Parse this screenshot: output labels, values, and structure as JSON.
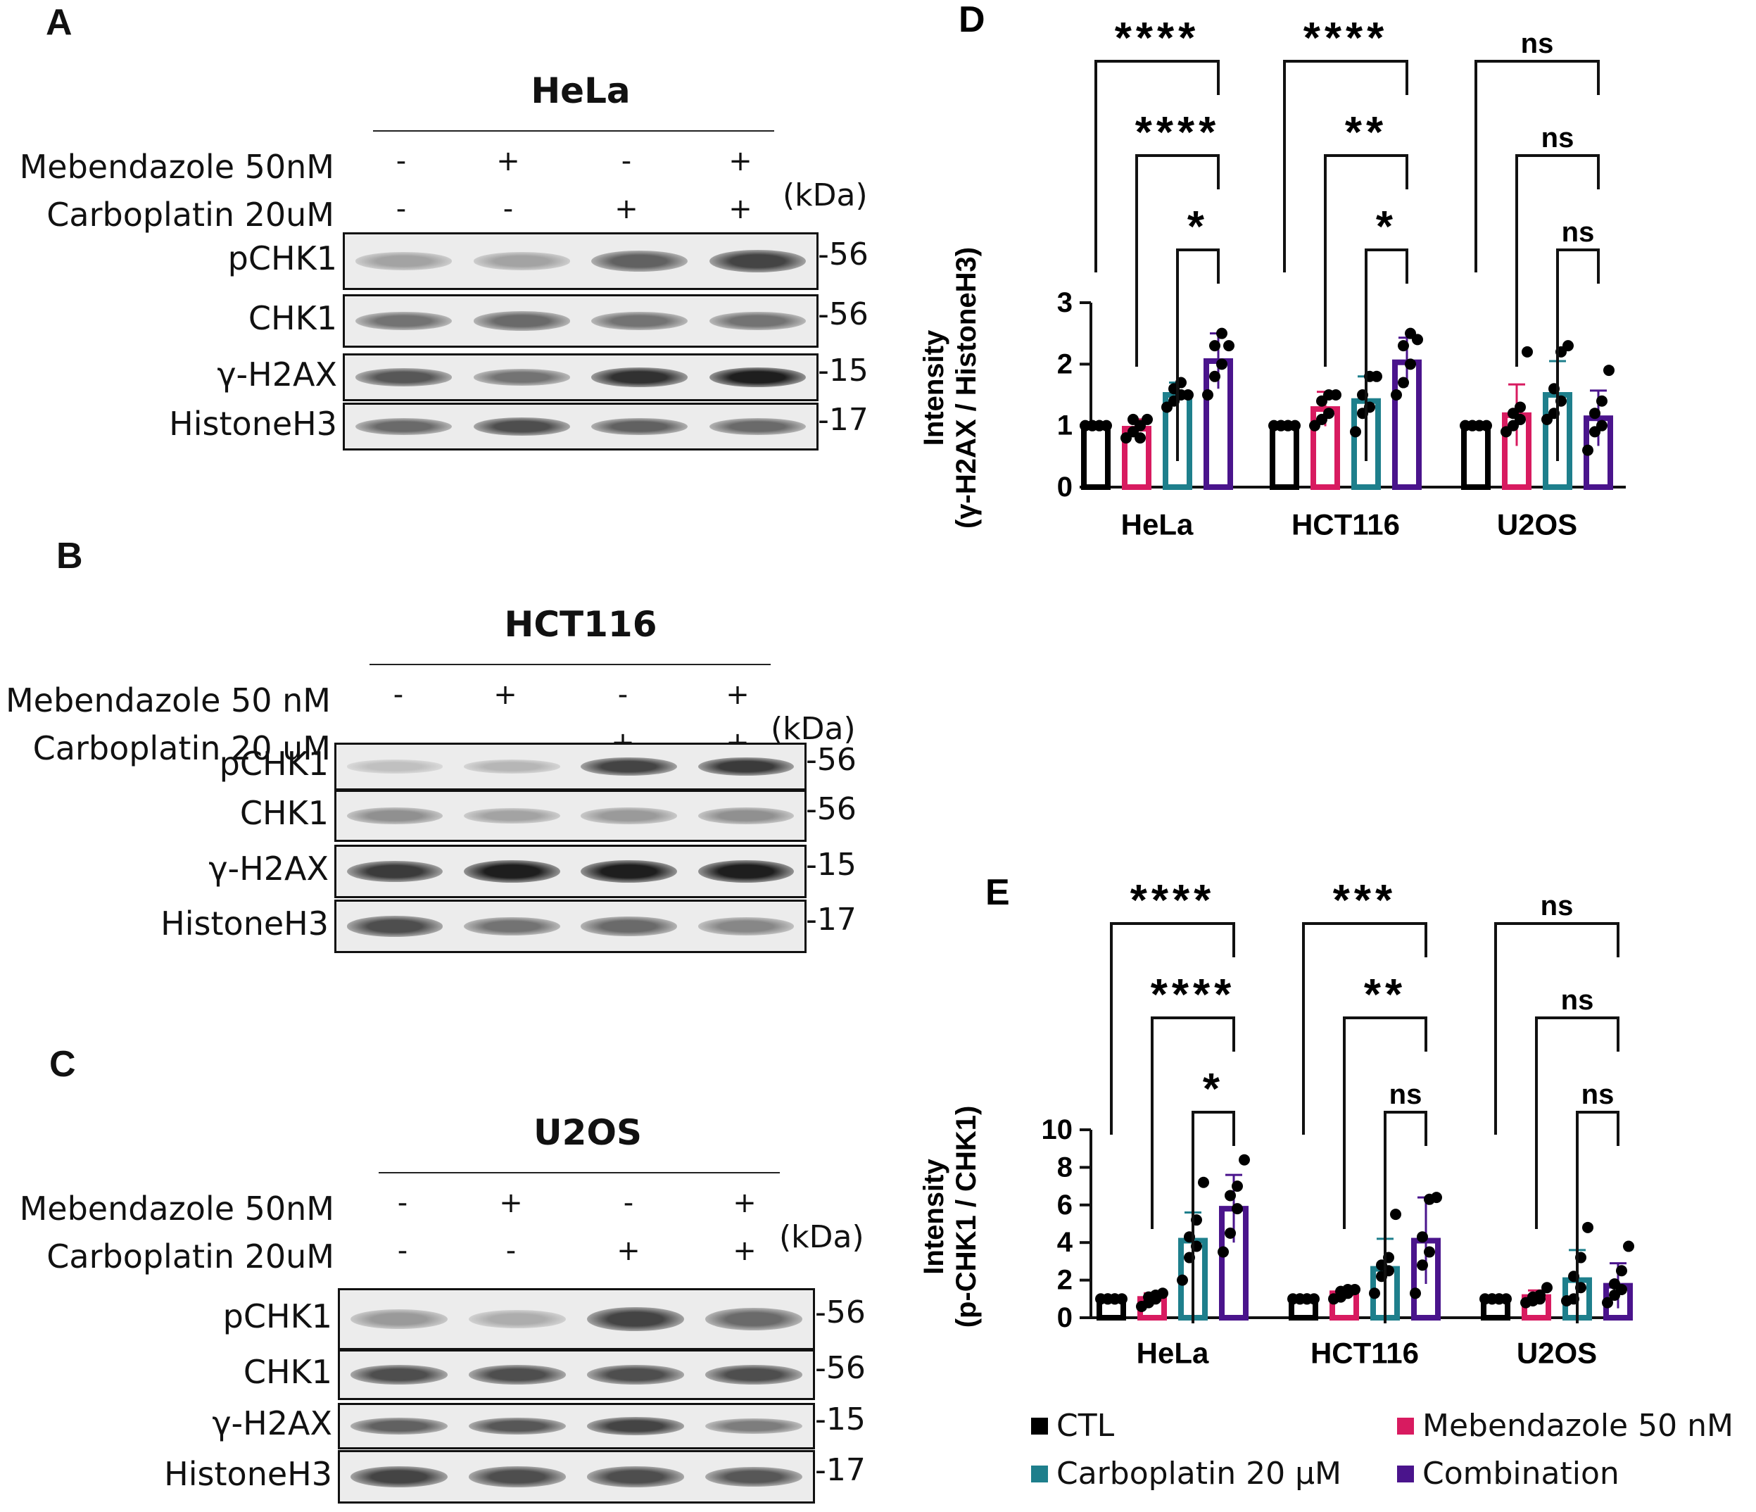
{
  "blots": [
    {
      "panel_label": "A",
      "title": "HeLa",
      "treatments": [
        {
          "label": "Mebendazole 50nM",
          "signs": [
            "-",
            "+",
            "-",
            "+"
          ]
        },
        {
          "label": "Carboplatin 20uM",
          "signs": [
            "-",
            "-",
            "+",
            "+"
          ]
        }
      ],
      "kda": "(kDa)",
      "rows": [
        {
          "protein": "pCHK1",
          "mw": "-56",
          "intensity": [
            0.3,
            0.3,
            0.65,
            0.8
          ]
        },
        {
          "protein": "CHK1",
          "mw": "-56",
          "intensity": [
            0.55,
            0.6,
            0.55,
            0.55
          ]
        },
        {
          "protein": "γ-H2AX",
          "mw": "-15",
          "intensity": [
            0.7,
            0.55,
            0.9,
            1.0
          ]
        },
        {
          "protein": "HistoneH3",
          "mw": "-17",
          "intensity": [
            0.6,
            0.75,
            0.65,
            0.6
          ]
        }
      ]
    },
    {
      "panel_label": "B",
      "title": "HCT116",
      "treatments": [
        {
          "label": "Mebendazole 50 nM",
          "signs": [
            "-",
            "+",
            "-",
            "+"
          ]
        },
        {
          "label": "Carboplatin 20 uM",
          "signs": [
            "-",
            "-",
            "+",
            "+"
          ]
        }
      ],
      "kda": "(kDa)",
      "rows": [
        {
          "protein": "pCHK1",
          "mw": "-56",
          "intensity": [
            0.15,
            0.2,
            0.8,
            0.85
          ]
        },
        {
          "protein": "CHK1",
          "mw": "-56",
          "intensity": [
            0.4,
            0.3,
            0.35,
            0.4
          ]
        },
        {
          "protein": "γ-H2AX",
          "mw": "-15",
          "intensity": [
            0.85,
            1.0,
            1.0,
            1.0
          ]
        },
        {
          "protein": "HistoneH3",
          "mw": "-17",
          "intensity": [
            0.75,
            0.55,
            0.6,
            0.45
          ]
        }
      ]
    },
    {
      "panel_label": "C",
      "title": "U2OS",
      "treatments": [
        {
          "label": "Mebendazole 50nM",
          "signs": [
            "-",
            "+",
            "-",
            "+"
          ]
        },
        {
          "label": "Carboplatin 20uM",
          "signs": [
            "-",
            "-",
            "+",
            "+"
          ]
        }
      ],
      "kda": "(kDa)",
      "rows": [
        {
          "protein": "pCHK1",
          "mw": "-56",
          "intensity": [
            0.35,
            0.25,
            0.8,
            0.6
          ]
        },
        {
          "protein": "CHK1",
          "mw": "-56",
          "intensity": [
            0.75,
            0.75,
            0.75,
            0.75
          ]
        },
        {
          "protein": "γ-H2AX",
          "mw": "-15",
          "intensity": [
            0.65,
            0.7,
            0.8,
            0.5
          ]
        },
        {
          "protein": "HistoneH3",
          "mw": "-17",
          "intensity": [
            0.8,
            0.75,
            0.75,
            0.7
          ]
        }
      ]
    }
  ],
  "chart_data": [
    {
      "panel_label": "D",
      "type": "bar",
      "ylabel_line1": "Intensity",
      "ylabel_line2": "(γ-H2AX / HistoneH3)",
      "ylim": [
        0,
        3
      ],
      "yticks": [
        "0",
        "1",
        "2",
        "3"
      ],
      "categories": [
        "HeLa",
        "HCT116",
        "U2OS"
      ],
      "series": [
        {
          "name": "CTL",
          "values": [
            1.0,
            1.0,
            1.0
          ],
          "err": [
            0,
            0,
            0
          ],
          "points": [
            [
              1,
              1,
              1,
              1,
              1,
              1
            ],
            [
              1,
              1,
              1,
              1,
              1,
              1
            ],
            [
              1,
              1,
              1,
              1,
              1,
              1
            ]
          ]
        },
        {
          "name": "Mebendazole 50 nM",
          "values": [
            0.95,
            1.27,
            1.17
          ],
          "err": [
            0.15,
            0.28,
            0.5
          ],
          "points": [
            [
              0.8,
              0.9,
              1.0,
              1.1,
              0.8,
              1.1
            ],
            [
              1.0,
              1.1,
              1.2,
              1.4,
              1.5,
              1.5
            ],
            [
              0.9,
              1.0,
              1.1,
              1.2,
              1.3,
              2.2
            ]
          ]
        },
        {
          "name": "Carboplatin 20 μM",
          "values": [
            1.5,
            1.4,
            1.5
          ],
          "err": [
            0.2,
            0.4,
            0.55
          ],
          "points": [
            [
              1.3,
              1.4,
              1.5,
              1.6,
              1.7,
              1.5
            ],
            [
              0.9,
              1.2,
              1.3,
              1.5,
              1.8,
              1.8
            ],
            [
              1.1,
              1.2,
              1.4,
              1.6,
              2.2,
              2.3
            ]
          ]
        },
        {
          "name": "Combination",
          "values": [
            2.05,
            2.03,
            1.12
          ],
          "err": [
            0.45,
            0.4,
            0.45
          ],
          "points": [
            [
              1.5,
              1.8,
              2.0,
              2.3,
              2.5,
              2.3
            ],
            [
              1.5,
              1.7,
              2.0,
              2.3,
              2.5,
              2.4
            ],
            [
              0.6,
              0.9,
              1.0,
              1.2,
              1.4,
              1.9
            ]
          ]
        }
      ],
      "comparisons": [
        [
          [
            "****",
            "****",
            "*"
          ],
          [
            "****",
            "**",
            "*"
          ],
          [
            "ns",
            "ns",
            "ns"
          ]
        ]
      ]
    },
    {
      "panel_label": "E",
      "type": "bar",
      "ylabel_line1": "Intensity",
      "ylabel_line2": "(p-CHK1 / CHK1)",
      "ylim": [
        0,
        10
      ],
      "yticks": [
        "0",
        "2",
        "4",
        "6",
        "8",
        "10"
      ],
      "categories": [
        "HeLa",
        "HCT116",
        "U2OS"
      ],
      "series": [
        {
          "name": "CTL",
          "values": [
            1.0,
            1.0,
            1.0
          ],
          "err": [
            0,
            0,
            0
          ],
          "points": [
            [
              1,
              1,
              1,
              1,
              1,
              1
            ],
            [
              1,
              1,
              1,
              1,
              1,
              1
            ],
            [
              1,
              1,
              1,
              1,
              1,
              1
            ]
          ]
        },
        {
          "name": "Mebendazole 50 nM",
          "values": [
            1.0,
            1.3,
            1.1
          ],
          "err": [
            0.3,
            0.2,
            0.35
          ],
          "points": [
            [
              0.6,
              0.8,
              1.0,
              1.1,
              1.2,
              1.3
            ],
            [
              1.0,
              1.1,
              1.3,
              1.4,
              1.5,
              1.5
            ],
            [
              0.8,
              0.9,
              1.0,
              1.1,
              1.2,
              1.6
            ]
          ]
        },
        {
          "name": "Carboplatin 20 μM",
          "values": [
            4.1,
            2.6,
            2.0
          ],
          "err": [
            1.5,
            1.6,
            1.6
          ],
          "points": [
            [
              2.0,
              3.2,
              3.8,
              4.3,
              5.2,
              7.2
            ],
            [
              1.3,
              2.2,
              2.5,
              2.8,
              3.2,
              5.5
            ],
            [
              0.9,
              1.0,
              1.6,
              2.2,
              3.2,
              4.8
            ]
          ]
        },
        {
          "name": "Combination",
          "values": [
            5.8,
            4.1,
            1.7
          ],
          "err": [
            1.8,
            2.3,
            1.2
          ],
          "points": [
            [
              3.5,
              4.5,
              5.8,
              6.5,
              7.0,
              8.4
            ],
            [
              1.3,
              2.8,
              3.5,
              4.3,
              6.3,
              6.4
            ],
            [
              0.8,
              1.2,
              1.5,
              1.8,
              2.5,
              3.8
            ]
          ]
        }
      ],
      "comparisons": [
        [
          [
            "****",
            "****",
            "*"
          ],
          [
            "***",
            "**",
            "ns"
          ],
          [
            "ns",
            "ns",
            "ns"
          ]
        ]
      ]
    }
  ],
  "legend": {
    "items": [
      {
        "label": "CTL",
        "color": "#000000"
      },
      {
        "label": "Mebendazole 50 nM",
        "color": "#d81b60"
      },
      {
        "label": "Carboplatin 20 μM",
        "color": "#1e7f8c"
      },
      {
        "label": "Combination",
        "color": "#4a148c"
      }
    ]
  }
}
